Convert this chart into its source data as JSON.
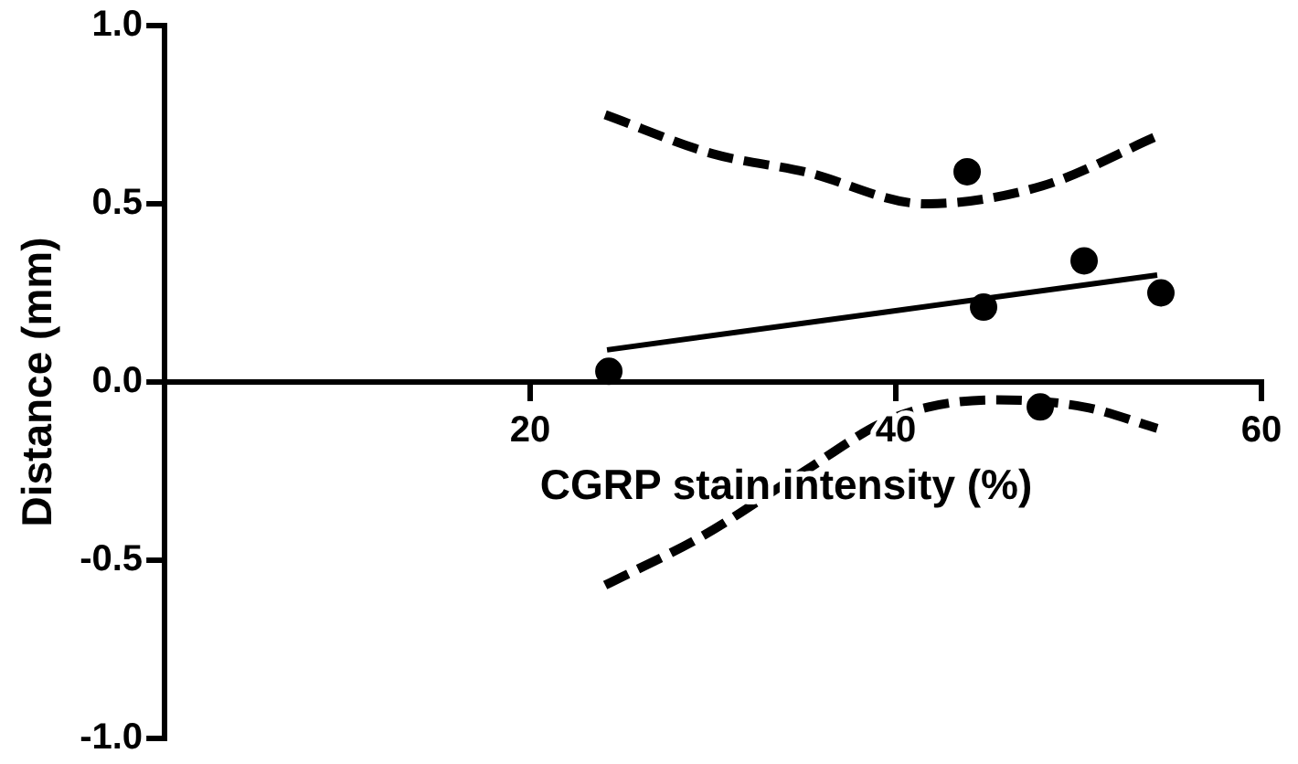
{
  "chart_data": {
    "type": "scatter",
    "xlabel": "CGRP stain intensity (%)",
    "ylabel": "Distance (mm)",
    "xlim": [
      0,
      60
    ],
    "xticks": [
      20,
      40,
      60
    ],
    "ylim": [
      -1,
      1
    ],
    "yticks": [
      {
        "value": -1,
        "label": "-1.0"
      },
      -0.5,
      {
        "value": 0,
        "label": "0.0"
      },
      0.5,
      {
        "value": 1,
        "label": "1.0"
      }
    ],
    "grid": false,
    "legend": false,
    "marker": "circle",
    "series": [
      {
        "type": "scatter",
        "color": "#000000",
        "x": [
          24.3,
          43.9,
          44.8,
          47.9,
          50.3,
          54.5
        ],
        "values": [
          0.03,
          0.59,
          0.21,
          -0.07,
          0.34,
          0.25
        ]
      },
      {
        "type": "line",
        "color": "#000000",
        "marker": "none",
        "line_style": "solid",
        "x": [
          24.2,
          54.3
        ],
        "values": [
          0.09,
          0.3
        ]
      },
      {
        "type": "line",
        "color": "#000000",
        "marker": "none",
        "line_style": "dashed",
        "x": [
          24.1,
          30,
          35,
          41.6,
          48,
          54.3
        ],
        "values": [
          0.75,
          0.64,
          0.59,
          0.5,
          0.55,
          0.69
        ]
      },
      {
        "type": "line",
        "color": "#000000",
        "marker": "none",
        "line_style": "dashed",
        "x": [
          24.1,
          29.5,
          34.7,
          39.9,
          45.4,
          50.3,
          54.3
        ],
        "values": [
          -0.57,
          -0.43,
          -0.26,
          -0.1,
          -0.05,
          -0.07,
          -0.13
        ]
      }
    ]
  }
}
